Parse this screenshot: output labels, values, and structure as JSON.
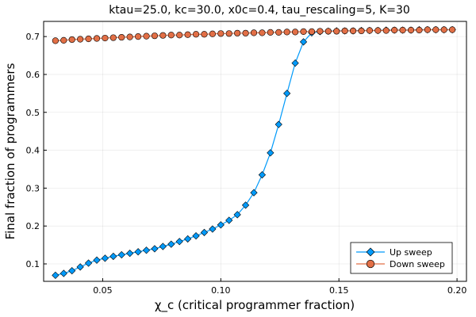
{
  "chart_data": {
    "type": "line",
    "title": "ktau=25.0, kc=30.0, x0c=0.4, tau_rescaling=5, K=30",
    "xlabel": "χ_c (critical programmer fraction)",
    "ylabel": "Final fraction of programmers",
    "xlim": [
      0.025,
      0.204
    ],
    "ylim": [
      0.054,
      0.74
    ],
    "xticks": [
      0.05,
      0.1,
      0.15,
      0.2
    ],
    "xtick_labels": [
      "0.05",
      "0.10",
      "0.15",
      "0.20"
    ],
    "yticks": [
      0.1,
      0.2,
      0.3,
      0.4,
      0.5,
      0.6,
      0.7
    ],
    "ytick_labels": [
      "0.1",
      "0.2",
      "0.3",
      "0.4",
      "0.5",
      "0.6",
      "0.7"
    ],
    "grid": true,
    "legend_position": "bottom-right",
    "x": [
      0.03,
      0.0335,
      0.037,
      0.0405,
      0.044,
      0.0475,
      0.051,
      0.0545,
      0.058,
      0.0615,
      0.065,
      0.0685,
      0.072,
      0.0755,
      0.079,
      0.0825,
      0.086,
      0.0895,
      0.093,
      0.0965,
      0.1,
      0.1035,
      0.107,
      0.1105,
      0.114,
      0.1175,
      0.121,
      0.1245,
      0.128,
      0.1315,
      0.135,
      0.1385,
      0.142,
      0.1455,
      0.149,
      0.1525,
      0.156,
      0.1595,
      0.163,
      0.1665,
      0.17,
      0.1735,
      0.177,
      0.1805,
      0.184,
      0.1875,
      0.191,
      0.1945,
      0.198
    ],
    "series": [
      {
        "name": "Up sweep",
        "color": "#009AFA",
        "marker": "diamond",
        "values": [
          0.07,
          0.075,
          0.082,
          0.092,
          0.102,
          0.11,
          0.115,
          0.12,
          0.124,
          0.128,
          0.132,
          0.136,
          0.14,
          0.146,
          0.152,
          0.159,
          0.166,
          0.174,
          0.183,
          0.192,
          0.203,
          0.215,
          0.23,
          0.255,
          0.288,
          0.335,
          0.393,
          0.468,
          0.55,
          0.63,
          0.686,
          0.71,
          0.713,
          0.714,
          0.715,
          0.715,
          0.715,
          0.716,
          0.716,
          0.716,
          0.717,
          0.717,
          0.717,
          0.717,
          0.718,
          0.718,
          0.718,
          0.718,
          0.718
        ]
      },
      {
        "name": "Down sweep",
        "color": "#E26F46",
        "marker": "circle",
        "values": [
          0.689,
          0.69,
          0.692,
          0.693,
          0.694,
          0.695,
          0.696,
          0.697,
          0.698,
          0.699,
          0.7,
          0.701,
          0.702,
          0.703,
          0.704,
          0.704,
          0.705,
          0.706,
          0.706,
          0.707,
          0.708,
          0.708,
          0.709,
          0.709,
          0.71,
          0.71,
          0.711,
          0.711,
          0.712,
          0.712,
          0.713,
          0.713,
          0.714,
          0.714,
          0.714,
          0.715,
          0.715,
          0.715,
          0.716,
          0.716,
          0.716,
          0.717,
          0.717,
          0.717,
          0.717,
          0.718,
          0.718,
          0.718,
          0.718
        ]
      }
    ]
  }
}
